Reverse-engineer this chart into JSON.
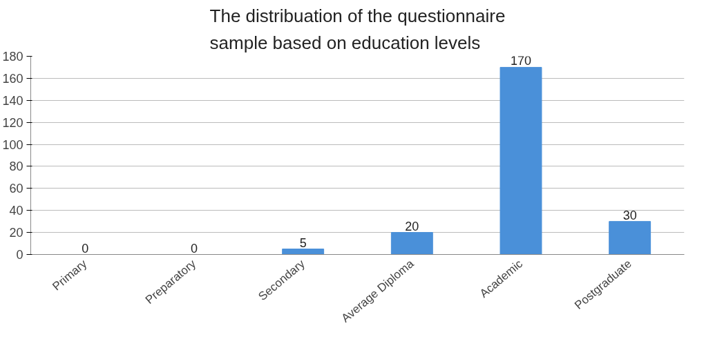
{
  "chart_data": {
    "type": "bar",
    "title": "The distribuation of the questionnaire sample based on education levels",
    "categories": [
      "Primary",
      "Preparatory",
      "Secondary",
      "Average Diploma",
      "Academic",
      "Postgraduate"
    ],
    "values": [
      0,
      0,
      5,
      20,
      170,
      30
    ],
    "color": "#4a90d9",
    "ylim": [
      0,
      180
    ],
    "yticks": [
      0,
      20,
      40,
      60,
      80,
      100,
      120,
      140,
      160,
      180
    ],
    "grid": "y",
    "data_labels": true
  }
}
